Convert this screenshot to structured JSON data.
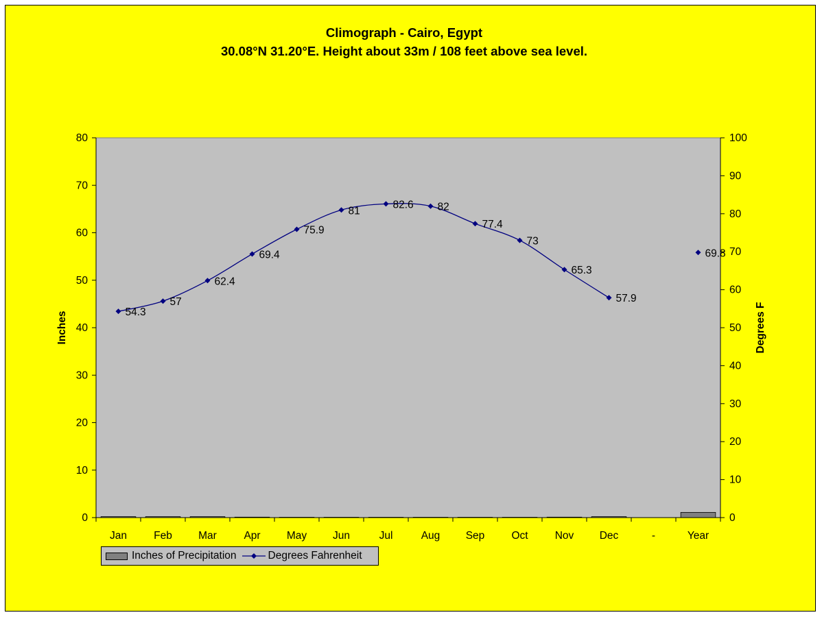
{
  "chart": {
    "title_line1": "Climograph - Cairo, Egypt",
    "title_line2": "30.08°N 31.20°E. Height about 33m / 108 feet above sea level."
  },
  "chart_data": {
    "type": "bar+line",
    "categories": [
      "Jan",
      "Feb",
      "Mar",
      "Apr",
      "May",
      "Jun",
      "Jul",
      "Aug",
      "Sep",
      "Oct",
      "Nov",
      "Dec",
      "-",
      "Year"
    ],
    "series": [
      {
        "name": "Inches of Precipitation",
        "type": "bar",
        "axis": "left",
        "values": [
          0.2,
          0.2,
          0.2,
          0.1,
          0,
          0,
          0,
          0,
          0,
          0,
          0.1,
          0.2,
          null,
          1.1
        ]
      },
      {
        "name": "Degrees Fahrenheit",
        "type": "line",
        "axis": "right",
        "values": [
          54.3,
          57,
          62.4,
          69.4,
          75.9,
          81,
          82.6,
          82,
          77.4,
          73,
          65.3,
          57.9,
          null,
          69.8
        ],
        "labels": [
          "54.3",
          "57",
          "62.4",
          "69.4",
          "75.9",
          "81",
          "82.6",
          "82",
          "77.4",
          "73",
          "65.3",
          "57.9",
          "",
          "69.8"
        ]
      }
    ],
    "ylabel": "Inches",
    "y2label": "Degrees F",
    "ylim": [
      0,
      80
    ],
    "y2lim": [
      0,
      100
    ],
    "yticks": [
      "0",
      "10",
      "20",
      "30",
      "40",
      "50",
      "60",
      "70",
      "80"
    ],
    "y2ticks": [
      "0",
      "10",
      "20",
      "30",
      "40",
      "50",
      "60",
      "70",
      "80",
      "90",
      "100"
    ],
    "grid": false,
    "legend_position": "bottom-left"
  },
  "colors": {
    "background": "#ffff00",
    "plot_area": "#c0c0c0",
    "bar": "#808080",
    "line": "#000080"
  },
  "legend": {
    "bar_label": "Inches of Precipitation",
    "line_label": "Degrees Fahrenheit"
  }
}
